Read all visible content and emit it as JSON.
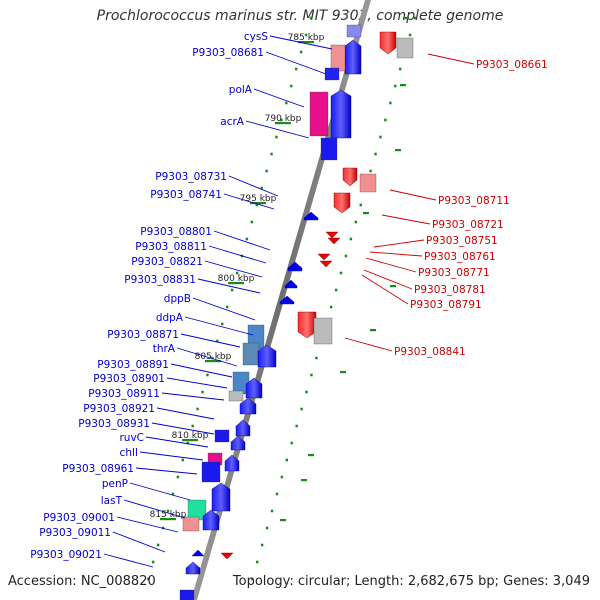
{
  "title": "Prochlorococcus marinus str. MIT 9303, complete genome",
  "footer": {
    "accession": "Accession: NC_008820",
    "topology": "Topology: circular; Length: 2,682,675 bp; Genes: 3,049"
  },
  "kbp_ticks": [
    "785 kbp",
    "790 kbp",
    "795 kbp",
    "800 kbp",
    "805 kbp",
    "810 kbp",
    "815 kbp"
  ],
  "left_labels": [
    "cysS",
    "P9303_08681",
    "polA",
    "acrA",
    "P9303_08731",
    "P9303_08741",
    "P9303_08801",
    "P9303_08811",
    "P9303_08821",
    "P9303_08831",
    "dppB",
    "ddpA",
    "P9303_08871",
    "thrA",
    "P9303_08891",
    "P9303_08901",
    "P9303_08911",
    "P9303_08921",
    "P9303_08931",
    "ruvC",
    "chlI",
    "P9303_08961",
    "penP",
    "lasT",
    "P9303_09001",
    "P9303_09011",
    "P9303_09021"
  ],
  "right_labels": [
    "P9303_08661",
    "P9303_08711",
    "P9303_08721",
    "P9303_08751",
    "P9303_08761",
    "P9303_08771",
    "P9303_08781",
    "P9303_08791",
    "P9303_08841"
  ],
  "colors": {
    "forward_strand": "#0000ee",
    "reverse_strand": "#ee0000",
    "backbone": "#808080",
    "tick": "#1a8a1a",
    "left_label": "#0000cc",
    "right_label": "#cc0000"
  }
}
